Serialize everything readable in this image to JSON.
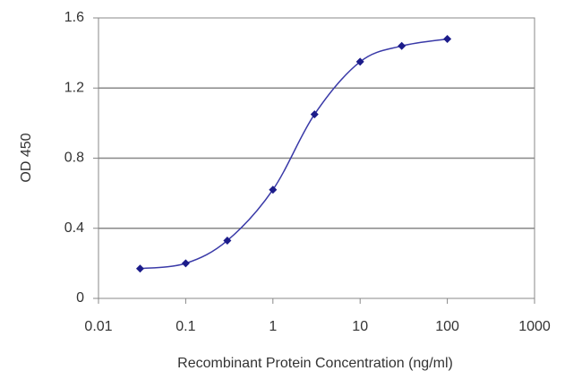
{
  "chart_data": {
    "type": "scatter",
    "x_label": "Recombinant Protein Concentration (ng/ml)",
    "y_label": "OD 450",
    "x": [
      0.03,
      0.1,
      0.3,
      1,
      3,
      10,
      30,
      100
    ],
    "values": [
      0.17,
      0.2,
      0.33,
      0.62,
      1.05,
      1.35,
      1.44,
      1.48
    ],
    "color": "#1c1c8a",
    "line_color": "#3a3aa8",
    "xscale": "log",
    "xlim": [
      0.01,
      1000
    ],
    "xticks": [
      0.01,
      0.1,
      1,
      10,
      100,
      1000
    ],
    "ylim": [
      0,
      1.6
    ],
    "yticks": [
      0,
      0.4,
      0.8,
      1.2,
      1.6
    ],
    "grid": true
  }
}
